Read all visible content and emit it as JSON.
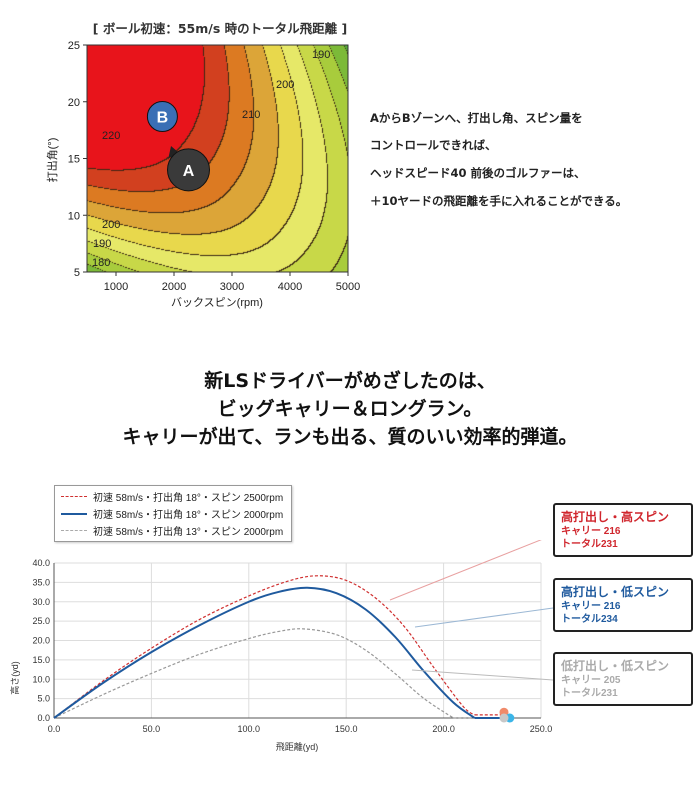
{
  "contour": {
    "title": "[ ボール初速：55m/s 時のトータル飛距離 ]",
    "xlabel": "バックスピン(rpm)",
    "ylabel": "打出角(°)",
    "xticks": [
      "1000",
      "2000",
      "3000",
      "4000",
      "5000"
    ],
    "yticks": [
      "5",
      "10",
      "15",
      "20",
      "25"
    ],
    "contour_labels": [
      "190",
      "200",
      "210",
      "220",
      "200",
      "190",
      "180"
    ],
    "points": [
      {
        "label": "B",
        "spin": 1800,
        "angle": 18.7,
        "color": "#3a6fb5"
      },
      {
        "label": "A",
        "spin": 2250,
        "angle": 14,
        "color": "#3a3a3a"
      }
    ]
  },
  "chart_data": [
    {
      "type": "heatmap",
      "title": "[ ボール初速：55m/s 時のトータル飛距離 ]",
      "xlabel": "バックスピン(rpm)",
      "ylabel": "打出角(°)",
      "xlim": [
        500,
        5000
      ],
      "ylim": [
        5,
        25
      ],
      "levels": [
        180,
        190,
        200,
        210,
        220
      ],
      "grid": false
    },
    {
      "type": "line",
      "xlabel": "飛距離(yd)",
      "ylabel": "高さ(yd)",
      "xlim": [
        0,
        250
      ],
      "ylim": [
        0,
        40
      ],
      "grid": true,
      "xticks": [
        "0.0",
        "50.0",
        "100.0",
        "150.0",
        "200.0",
        "250.0"
      ],
      "yticks": [
        "0.0",
        "5.0",
        "10.0",
        "15.0",
        "20.0",
        "25.0",
        "30.0",
        "35.0",
        "40.0"
      ],
      "series": [
        {
          "name": "初速 58m/s・打出角 18°・スピン 2500rpm",
          "color": "#d03030",
          "style": "dashed",
          "x": [
            0,
            25,
            50,
            75,
            100,
            120,
            135,
            150,
            165,
            180,
            195,
            210,
            216,
            231
          ],
          "y": [
            0,
            9.5,
            18,
            25.5,
            31.5,
            35.3,
            36.7,
            35.5,
            31,
            23.5,
            13,
            3,
            0.8,
            0.8
          ]
        },
        {
          "name": "初速 58m/s・打出角 18°・スピン 2000rpm",
          "color": "#1f5a9e",
          "style": "solid",
          "x": [
            0,
            25,
            50,
            75,
            100,
            115,
            130,
            145,
            160,
            175,
            190,
            205,
            216,
            234
          ],
          "y": [
            0,
            9,
            17,
            24,
            30,
            32.5,
            33.6,
            32.2,
            28,
            21,
            12,
            4,
            0,
            0
          ]
        },
        {
          "name": "初速 58m/s・打出角 13°・スピン 2000rpm",
          "color": "#999999",
          "style": "dashed",
          "x": [
            0,
            25,
            50,
            75,
            100,
            115,
            128,
            145,
            160,
            175,
            190,
            205,
            231
          ],
          "y": [
            0,
            6,
            11.5,
            16.5,
            20.5,
            22.3,
            23,
            21.5,
            17.5,
            11.5,
            5,
            0,
            0
          ]
        }
      ],
      "landing": [
        {
          "x": 231,
          "color": "#f08a6a"
        },
        {
          "x": 234,
          "color": "#3bb5e8"
        },
        {
          "x": 231,
          "color": "#c8c8c8"
        }
      ]
    }
  ],
  "right_text": [
    "AからBゾーンへ、打出し角、スピン量を",
    "コントロールできれば、",
    "ヘッドスピード40 前後のゴルファーは、",
    "＋10ヤードの飛距離を手に入れることができる。"
  ],
  "headline": [
    "新LSドライバーがめざしたのは、",
    "ビッグキャリー＆ロングラン。",
    "キャリーが出て、ランも出る、質のいい効率的弾道。"
  ],
  "callouts": [
    {
      "title": "高打出し・高スピン",
      "carry": "キャリー 216",
      "total": "トータル231",
      "color": "#d0262d"
    },
    {
      "title": "高打出し・低スピン",
      "carry": "キャリー 216",
      "total": "トータル234",
      "color": "#1f5a9e"
    },
    {
      "title": "低打出し・低スピン",
      "carry": "キャリー 205",
      "total": "トータル231",
      "color": "#aaaaaa"
    }
  ]
}
